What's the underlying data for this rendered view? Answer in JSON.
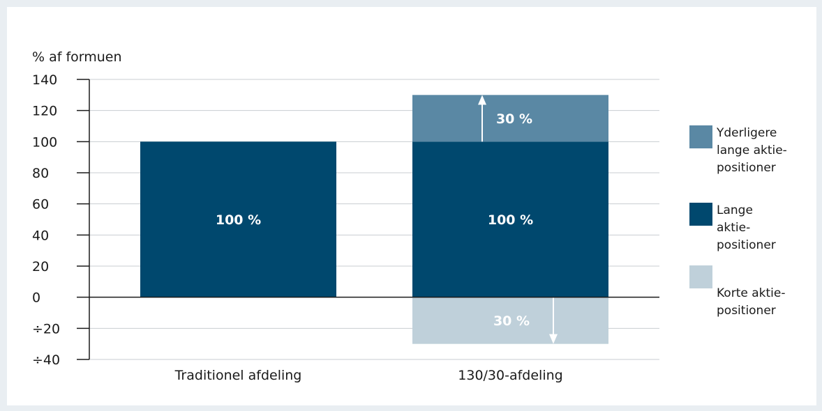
{
  "chart_data": {
    "type": "bar",
    "stacked": true,
    "ylabel": "% af formuen",
    "ylim": [
      -40,
      140
    ],
    "yticks": [
      140,
      120,
      100,
      80,
      60,
      40,
      20,
      0,
      -20,
      -40
    ],
    "ytick_labels": [
      "140",
      "120",
      "100",
      "80",
      "60",
      "40",
      "20",
      "0",
      "÷20",
      "÷40"
    ],
    "grid": true,
    "legend_position": "right",
    "categories": [
      "Traditionel afdeling",
      "130/30-afdeling"
    ],
    "series": [
      {
        "name": "Yderligere lange aktiepositioner",
        "legend_lines": [
          "Yderligere",
          "lange aktie-",
          "positioner"
        ],
        "color": "#5a88a4",
        "values": [
          0,
          30
        ],
        "labels": [
          "",
          "30 %"
        ]
      },
      {
        "name": "Lange aktiepositioner",
        "legend_lines": [
          "Lange",
          "aktie-",
          "positioner"
        ],
        "color": "#00486e",
        "values": [
          100,
          100
        ],
        "labels": [
          "100 %",
          "100 %"
        ]
      },
      {
        "name": "Korte aktiepositioner",
        "legend_lines": [
          "Korte aktie-",
          "positioner"
        ],
        "color": "#bfd0da",
        "values": [
          0,
          -30
        ],
        "labels": [
          "",
          "30 %"
        ]
      }
    ],
    "colors": {
      "grid": "#c8cdd1",
      "axis": "#1a1a1a",
      "label_on_dark": "#ffffff",
      "arrow": "#ffffff",
      "card": "#ffffff",
      "page": "#e9eef2"
    }
  }
}
